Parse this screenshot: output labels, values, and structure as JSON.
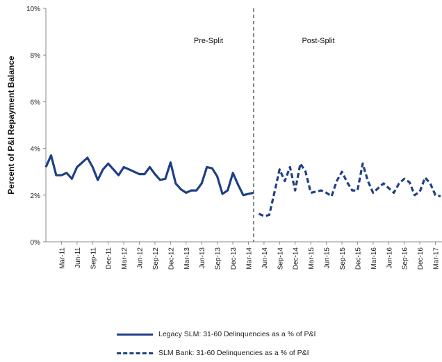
{
  "chart_data": {
    "type": "line",
    "ylabel": "Percent of P&I Repayment  Balance",
    "ylim": [
      0,
      10
    ],
    "yticks": [
      "0%",
      "2%",
      "4%",
      "6%",
      "8%",
      "10%"
    ],
    "grid": false,
    "xlim": [
      0,
      76
    ],
    "x_tick_labels": [
      "Mar-11",
      "Jun-11",
      "Sep-11",
      "Dec-11",
      "Mar-12",
      "Jun-12",
      "Sep-12",
      "Dec-12",
      "Mar-13",
      "Jun-13",
      "Sep-13",
      "Dec-13",
      "Mar-14",
      "Jun-14",
      "Sep-14",
      "Dec-14",
      "Mar-15",
      "Jun-15",
      "Sep-15",
      "Dec-15",
      "Mar-16",
      "Jun-16",
      "Sep-16",
      "Dec-16",
      "Mar-17"
    ],
    "x_tick_positions": [
      3,
      6,
      9,
      12,
      15,
      18,
      21,
      24,
      27,
      30,
      33,
      36,
      39,
      42,
      45,
      48,
      51,
      54,
      57,
      60,
      63,
      66,
      69,
      72,
      75
    ],
    "split_x": 40,
    "annotations": [
      "Pre-Split",
      "Post-Split"
    ],
    "legend_placement": "bottom",
    "series": [
      {
        "name": "Legacy SLM: 31-60 Delinquencies as a % of P&I",
        "style": "solid",
        "color": "#1f3f86",
        "x": [
          0,
          1,
          2,
          3,
          4,
          5,
          6,
          7,
          8,
          9,
          10,
          11,
          12,
          13,
          14,
          15,
          16,
          17,
          18,
          19,
          20,
          21,
          22,
          23,
          24,
          25,
          26,
          27,
          28,
          29,
          30,
          31,
          32,
          33,
          34,
          35,
          36,
          37,
          38,
          39,
          40
        ],
        "values": [
          3.2,
          3.7,
          2.85,
          2.85,
          2.95,
          2.7,
          3.2,
          3.4,
          3.6,
          3.2,
          2.65,
          3.1,
          3.35,
          3.1,
          2.85,
          3.2,
          3.1,
          3.0,
          2.9,
          2.9,
          3.2,
          2.9,
          2.65,
          2.7,
          3.4,
          2.5,
          2.25,
          2.1,
          2.2,
          2.2,
          2.5,
          3.2,
          3.15,
          2.8,
          2.05,
          2.2,
          2.95,
          2.45,
          2.0,
          2.05,
          2.1
        ]
      },
      {
        "name": "SLM Bank: 31-60 Delinquencies as a % of P&I",
        "style": "dashed",
        "color": "#1f3f86",
        "x": [
          41,
          42,
          43,
          44,
          45,
          46,
          47,
          48,
          49,
          50,
          51,
          52,
          53,
          54,
          55,
          56,
          57,
          58,
          59,
          60,
          61,
          62,
          63,
          64,
          65,
          66,
          67,
          68,
          69,
          70,
          71,
          72,
          73,
          74,
          75,
          76
        ],
        "values": [
          1.2,
          1.1,
          1.15,
          2.1,
          3.1,
          2.6,
          3.2,
          2.2,
          3.35,
          3.0,
          2.1,
          2.15,
          2.2,
          2.1,
          1.95,
          2.6,
          3.0,
          2.55,
          2.2,
          2.2,
          3.35,
          2.6,
          2.1,
          2.3,
          2.5,
          2.3,
          2.1,
          2.5,
          2.7,
          2.55,
          2.0,
          2.15,
          2.75,
          2.5,
          2.0,
          1.95
        ]
      }
    ]
  }
}
